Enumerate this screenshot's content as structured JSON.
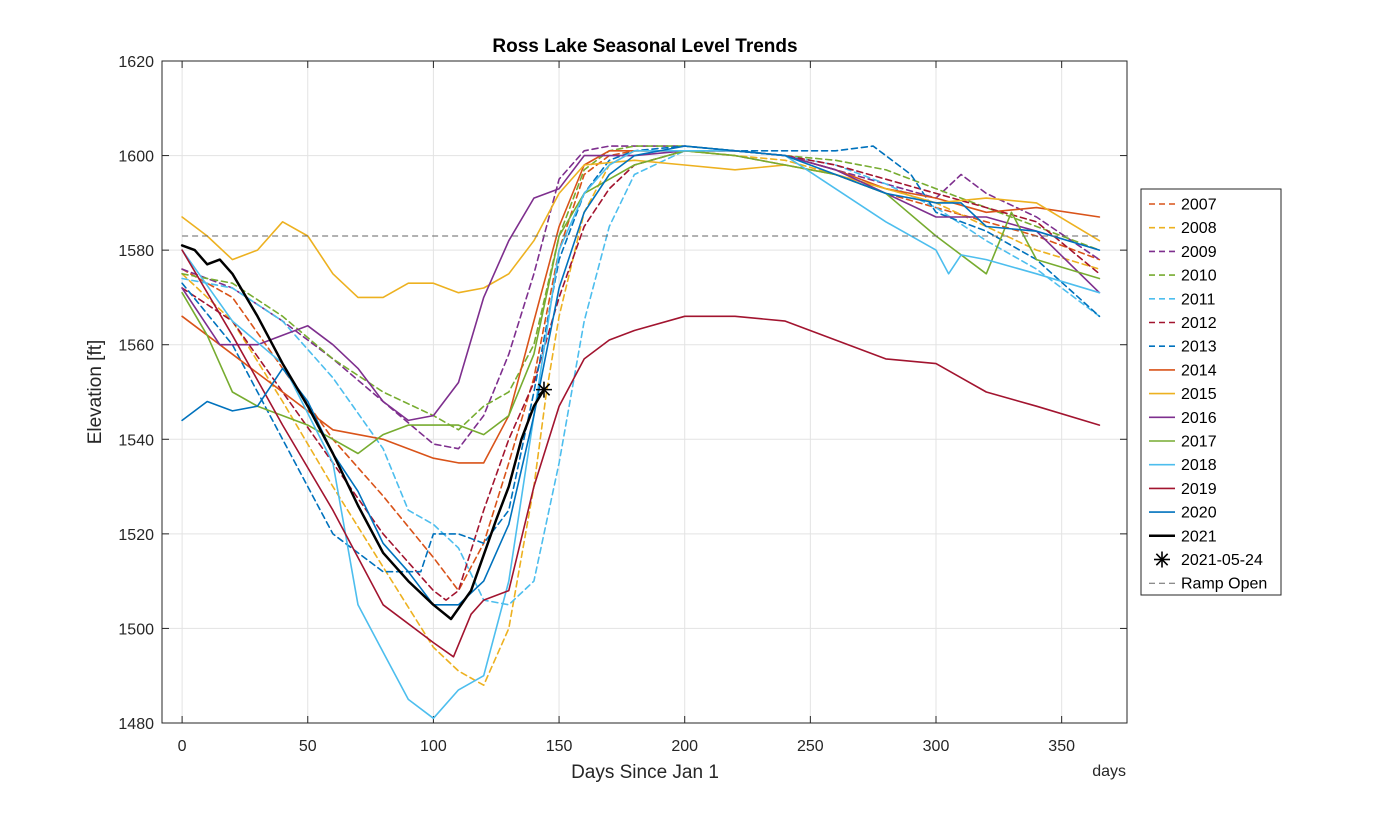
{
  "chart_data": {
    "type": "line",
    "title": "Ross Lake Seasonal Level Trends",
    "xlabel": "Days Since Jan 1",
    "ylabel": "Elevation [ft]",
    "x_unit_label": "days",
    "xlim": [
      -8,
      376
    ],
    "ylim": [
      1480,
      1620
    ],
    "xticks": [
      0,
      50,
      100,
      150,
      200,
      250,
      300,
      350
    ],
    "yticks": [
      1480,
      1500,
      1520,
      1540,
      1560,
      1580,
      1600,
      1620
    ],
    "grid": true,
    "legend_position": "right-outside",
    "reference_line": {
      "name": "Ramp Open",
      "y": 1583,
      "color": "#666666"
    },
    "marker": {
      "name": "2021-05-24",
      "x": 144,
      "y": 1550.5
    },
    "series": [
      {
        "name": "2007",
        "color": "#D95319",
        "style": "dashed",
        "x": [
          0,
          20,
          40,
          60,
          80,
          100,
          110,
          120,
          130,
          140,
          150,
          160,
          170,
          180,
          200,
          220,
          240,
          260,
          280,
          300,
          320,
          340,
          365
        ],
        "y": [
          1576,
          1570,
          1555,
          1540,
          1528,
          1515,
          1508,
          1518,
          1535,
          1553,
          1580,
          1596,
          1600,
          1601,
          1601,
          1600,
          1598,
          1596,
          1592,
          1589,
          1586,
          1583,
          1578
        ]
      },
      {
        "name": "2008",
        "color": "#EDB120",
        "style": "dashed",
        "x": [
          0,
          20,
          40,
          60,
          80,
          100,
          110,
          120,
          130,
          140,
          145,
          150,
          160,
          170,
          180,
          200,
          220,
          240,
          260,
          280,
          300,
          320,
          340,
          365
        ],
        "y": [
          1575,
          1565,
          1548,
          1530,
          1513,
          1496,
          1491,
          1488,
          1500,
          1530,
          1550,
          1566,
          1588,
          1598,
          1601,
          1601,
          1600,
          1599,
          1596,
          1593,
          1590,
          1585,
          1580,
          1576
        ]
      },
      {
        "name": "2009",
        "color": "#7E2F8E",
        "style": "dashed",
        "x": [
          0,
          20,
          40,
          60,
          80,
          100,
          110,
          120,
          130,
          140,
          150,
          160,
          170,
          180,
          200,
          220,
          240,
          260,
          280,
          300,
          310,
          320,
          340,
          365
        ],
        "y": [
          1576,
          1572,
          1565,
          1557,
          1548,
          1539,
          1538,
          1545,
          1558,
          1575,
          1595,
          1601,
          1602,
          1602,
          1602,
          1601,
          1600,
          1597,
          1594,
          1591,
          1596,
          1592,
          1587,
          1578
        ]
      },
      {
        "name": "2010",
        "color": "#77AC30",
        "style": "dashed",
        "x": [
          0,
          20,
          40,
          60,
          80,
          100,
          110,
          120,
          130,
          140,
          150,
          160,
          170,
          180,
          200,
          220,
          240,
          260,
          280,
          300,
          320,
          340,
          365
        ],
        "y": [
          1575,
          1573,
          1566,
          1557,
          1550,
          1545,
          1542,
          1547,
          1550,
          1560,
          1583,
          1597,
          1601,
          1602,
          1602,
          1601,
          1600,
          1599,
          1597,
          1593,
          1589,
          1585,
          1580
        ]
      },
      {
        "name": "2011",
        "color": "#4DBEEE",
        "style": "dashed",
        "x": [
          0,
          20,
          40,
          60,
          80,
          90,
          100,
          110,
          120,
          130,
          140,
          150,
          160,
          170,
          180,
          200,
          220,
          240,
          260,
          280,
          300,
          320,
          340,
          365
        ],
        "y": [
          1574,
          1572,
          1565,
          1553,
          1538,
          1525,
          1522,
          1517,
          1506,
          1505,
          1510,
          1535,
          1565,
          1585,
          1596,
          1601,
          1601,
          1600,
          1598,
          1594,
          1589,
          1582,
          1576,
          1566
        ]
      },
      {
        "name": "2012",
        "color": "#A2142F",
        "style": "dashed",
        "x": [
          0,
          20,
          40,
          60,
          80,
          100,
          105,
          110,
          120,
          130,
          140,
          150,
          160,
          170,
          180,
          200,
          220,
          240,
          260,
          280,
          300,
          320,
          340,
          365
        ],
        "y": [
          1572,
          1565,
          1550,
          1535,
          1520,
          1508,
          1506,
          1508,
          1525,
          1540,
          1552,
          1570,
          1585,
          1593,
          1598,
          1601,
          1601,
          1600,
          1598,
          1595,
          1592,
          1589,
          1586,
          1575
        ]
      },
      {
        "name": "2013",
        "color": "#0072BD",
        "style": "dashed",
        "x": [
          0,
          20,
          40,
          60,
          80,
          95,
          100,
          110,
          120,
          130,
          140,
          150,
          160,
          170,
          180,
          200,
          220,
          240,
          260,
          275,
          290,
          300,
          320,
          340,
          365
        ],
        "y": [
          1573,
          1560,
          1540,
          1520,
          1512,
          1512,
          1520,
          1520,
          1518,
          1525,
          1550,
          1578,
          1592,
          1599,
          1601,
          1602,
          1601,
          1601,
          1601,
          1602,
          1596,
          1588,
          1584,
          1578,
          1566
        ]
      },
      {
        "name": "2014",
        "color": "#D95319",
        "style": "solid",
        "x": [
          0,
          20,
          40,
          60,
          80,
          100,
          110,
          120,
          130,
          140,
          150,
          160,
          170,
          180,
          200,
          220,
          240,
          260,
          280,
          300,
          320,
          340,
          365
        ],
        "y": [
          1566,
          1558,
          1550,
          1542,
          1540,
          1536,
          1535,
          1535,
          1545,
          1565,
          1585,
          1598,
          1601,
          1601,
          1601,
          1601,
          1600,
          1597,
          1593,
          1591,
          1588,
          1589,
          1587
        ]
      },
      {
        "name": "2015",
        "color": "#EDB120",
        "style": "solid",
        "x": [
          0,
          10,
          20,
          30,
          40,
          50,
          60,
          70,
          80,
          90,
          100,
          110,
          120,
          130,
          140,
          150,
          160,
          180,
          200,
          220,
          240,
          260,
          280,
          300,
          320,
          340,
          365
        ],
        "y": [
          1587,
          1583,
          1578,
          1580,
          1586,
          1583,
          1575,
          1570,
          1570,
          1573,
          1573,
          1571,
          1572,
          1575,
          1582,
          1592,
          1598,
          1599,
          1598,
          1597,
          1598,
          1596,
          1593,
          1590,
          1591,
          1590,
          1582
        ]
      },
      {
        "name": "2016",
        "color": "#7E2F8E",
        "style": "solid",
        "x": [
          0,
          15,
          30,
          40,
          50,
          60,
          70,
          80,
          90,
          100,
          110,
          120,
          130,
          140,
          150,
          160,
          170,
          180,
          200,
          220,
          240,
          260,
          280,
          300,
          320,
          340,
          365
        ],
        "y": [
          1572,
          1560,
          1560,
          1562,
          1564,
          1560,
          1555,
          1548,
          1544,
          1545,
          1552,
          1570,
          1582,
          1591,
          1593,
          1600,
          1600,
          1600,
          1601,
          1601,
          1600,
          1597,
          1592,
          1587,
          1587,
          1584,
          1571
        ]
      },
      {
        "name": "2017",
        "color": "#77AC30",
        "style": "solid",
        "x": [
          0,
          10,
          20,
          30,
          40,
          50,
          60,
          70,
          80,
          90,
          100,
          110,
          120,
          130,
          140,
          150,
          160,
          170,
          180,
          200,
          220,
          240,
          260,
          280,
          300,
          320,
          330,
          340,
          365
        ],
        "y": [
          1571,
          1562,
          1550,
          1547,
          1545,
          1543,
          1540,
          1537,
          1541,
          1543,
          1543,
          1543,
          1541,
          1545,
          1558,
          1583,
          1592,
          1595,
          1598,
          1601,
          1600,
          1598,
          1596,
          1592,
          1583,
          1575,
          1588,
          1578,
          1574
        ]
      },
      {
        "name": "2018",
        "color": "#4DBEEE",
        "style": "solid",
        "x": [
          0,
          20,
          40,
          60,
          70,
          80,
          90,
          100,
          110,
          120,
          130,
          140,
          150,
          160,
          170,
          180,
          200,
          220,
          240,
          260,
          280,
          300,
          305,
          310,
          320,
          340,
          365
        ],
        "y": [
          1580,
          1565,
          1556,
          1535,
          1505,
          1495,
          1485,
          1481,
          1487,
          1490,
          1510,
          1545,
          1580,
          1592,
          1598,
          1601,
          1601,
          1601,
          1600,
          1593,
          1586,
          1580,
          1575,
          1579,
          1578,
          1575,
          1571
        ]
      },
      {
        "name": "2019",
        "color": "#A2142F",
        "style": "solid",
        "x": [
          0,
          20,
          40,
          60,
          80,
          100,
          108,
          115,
          120,
          130,
          140,
          150,
          160,
          170,
          180,
          200,
          220,
          240,
          260,
          280,
          300,
          320,
          340,
          365
        ],
        "y": [
          1580,
          1562,
          1543,
          1525,
          1505,
          1497,
          1494,
          1503,
          1506,
          1508,
          1530,
          1547,
          1557,
          1561,
          1563,
          1566,
          1566,
          1565,
          1561,
          1557,
          1556,
          1550,
          1547,
          1543
        ]
      },
      {
        "name": "2020",
        "color": "#0072BD",
        "style": "solid",
        "x": [
          0,
          10,
          20,
          30,
          40,
          50,
          60,
          70,
          80,
          90,
          100,
          110,
          120,
          130,
          140,
          150,
          160,
          170,
          180,
          200,
          220,
          240,
          260,
          280,
          300,
          310,
          320,
          340,
          365
        ],
        "y": [
          1544,
          1548,
          1546,
          1547,
          1555,
          1548,
          1537,
          1529,
          1518,
          1512,
          1505,
          1505,
          1510,
          1522,
          1545,
          1572,
          1588,
          1596,
          1600,
          1602,
          1601,
          1600,
          1596,
          1592,
          1590,
          1590,
          1585,
          1584,
          1580
        ]
      },
      {
        "name": "2021",
        "color": "#000000",
        "style": "solid",
        "width": 2.5,
        "x": [
          0,
          5,
          10,
          15,
          20,
          30,
          40,
          50,
          60,
          70,
          80,
          90,
          100,
          107,
          115,
          125,
          130,
          135,
          140,
          144
        ],
        "y": [
          1581,
          1580,
          1577,
          1578,
          1575,
          1566,
          1556,
          1547,
          1537,
          1526,
          1516,
          1510,
          1505,
          1502,
          1508,
          1523,
          1530,
          1540,
          1547,
          1550.5
        ]
      }
    ]
  }
}
